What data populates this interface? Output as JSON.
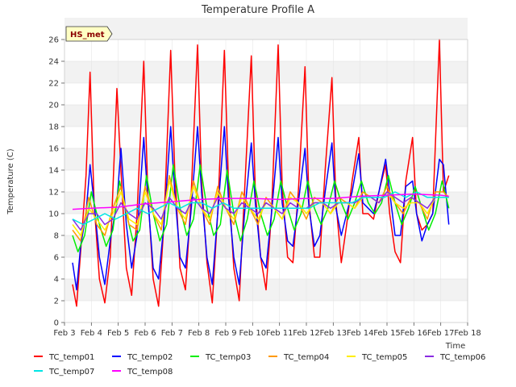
{
  "chart_data": {
    "type": "line",
    "title": "Temperature Profile A",
    "xlabel": "Time",
    "ylabel": "Temperature (C)",
    "badge": "HS_met",
    "ylim": [
      0,
      26
    ],
    "xlim": [
      3,
      18
    ],
    "yticks": [
      0,
      2,
      4,
      6,
      8,
      10,
      12,
      14,
      16,
      18,
      20,
      22,
      24,
      26
    ],
    "xticks": [
      {
        "v": 3,
        "label": "Feb 3"
      },
      {
        "v": 4,
        "label": "Feb 4"
      },
      {
        "v": 5,
        "label": "Feb 5"
      },
      {
        "v": 6,
        "label": "Feb 6"
      },
      {
        "v": 7,
        "label": "Feb 7"
      },
      {
        "v": 8,
        "label": "Feb 8"
      },
      {
        "v": 9,
        "label": "Feb 9"
      },
      {
        "v": 10,
        "label": "Feb 10"
      },
      {
        "v": 11,
        "label": "Feb 11"
      },
      {
        "v": 12,
        "label": "Feb 12"
      },
      {
        "v": 13,
        "label": "Feb 13"
      },
      {
        "v": 14,
        "label": "Feb 14"
      },
      {
        "v": 15,
        "label": "Feb 15"
      },
      {
        "v": 16,
        "label": "Feb 16"
      },
      {
        "v": 17,
        "label": "Feb 17"
      },
      {
        "v": 18,
        "label": "Feb 18"
      }
    ],
    "series": [
      {
        "name": "TC_temp01",
        "color": "#ff0000",
        "x": [
          3.3,
          3.45,
          3.6,
          3.8,
          3.95,
          4.1,
          4.3,
          4.5,
          4.7,
          4.95,
          5.1,
          5.3,
          5.5,
          5.7,
          5.95,
          6.1,
          6.3,
          6.5,
          6.7,
          6.95,
          7.1,
          7.3,
          7.5,
          7.7,
          7.95,
          8.1,
          8.3,
          8.5,
          8.7,
          8.95,
          9.1,
          9.3,
          9.5,
          9.7,
          9.95,
          10.1,
          10.3,
          10.5,
          10.7,
          10.95,
          11.1,
          11.3,
          11.5,
          11.7,
          11.95,
          12.1,
          12.3,
          12.5,
          12.7,
          12.95,
          13.1,
          13.3,
          13.5,
          13.7,
          13.95,
          14.1,
          14.3,
          14.5,
          14.7,
          14.95,
          15.1,
          15.3,
          15.5,
          15.7,
          15.95,
          16.1,
          16.3,
          16.5,
          16.7,
          16.95,
          17.1,
          17.3
        ],
        "values": [
          3.5,
          1.5,
          6.5,
          13.5,
          23.0,
          11.0,
          4.0,
          1.8,
          6.0,
          21.5,
          14.0,
          5.0,
          2.5,
          10.0,
          24.0,
          12.0,
          4.0,
          1.5,
          9.0,
          25.0,
          14.0,
          5.0,
          3.0,
          11.0,
          25.5,
          13.0,
          5.5,
          1.8,
          10.0,
          25.0,
          13.0,
          5.0,
          2.0,
          12.0,
          24.5,
          12.0,
          6.0,
          3.0,
          10.0,
          25.5,
          12.5,
          6.0,
          5.5,
          12.0,
          23.5,
          11.0,
          6.0,
          6.0,
          14.0,
          22.5,
          11.0,
          5.5,
          9.0,
          13.0,
          17.0,
          10.0,
          10.0,
          9.5,
          12.0,
          14.5,
          10.0,
          6.5,
          5.5,
          13.0,
          17.0,
          10.0,
          8.5,
          9.0,
          10.0,
          26.0,
          12.0,
          13.5
        ]
      },
      {
        "name": "TC_temp02",
        "color": "#0000ff",
        "x": [
          3.3,
          3.45,
          3.6,
          3.8,
          3.95,
          4.1,
          4.3,
          4.5,
          4.7,
          4.95,
          5.1,
          5.3,
          5.5,
          5.7,
          5.95,
          6.1,
          6.3,
          6.5,
          6.7,
          6.95,
          7.1,
          7.3,
          7.5,
          7.7,
          7.95,
          8.1,
          8.3,
          8.5,
          8.7,
          8.95,
          9.1,
          9.3,
          9.5,
          9.7,
          9.95,
          10.1,
          10.3,
          10.5,
          10.7,
          10.95,
          11.1,
          11.3,
          11.5,
          11.7,
          11.95,
          12.1,
          12.3,
          12.5,
          12.7,
          12.95,
          13.1,
          13.3,
          13.5,
          13.7,
          13.95,
          14.1,
          14.3,
          14.5,
          14.7,
          14.95,
          15.1,
          15.3,
          15.5,
          15.7,
          15.95,
          16.1,
          16.3,
          16.5,
          16.7,
          16.95,
          17.1,
          17.3
        ],
        "values": [
          5.5,
          3.0,
          7.0,
          10.0,
          14.5,
          11.0,
          6.0,
          3.5,
          7.5,
          11.0,
          16.0,
          9.0,
          5.0,
          8.0,
          17.0,
          11.5,
          5.0,
          4.0,
          9.0,
          18.0,
          12.0,
          6.0,
          5.0,
          10.0,
          18.0,
          12.0,
          6.0,
          3.5,
          10.0,
          18.0,
          11.5,
          6.0,
          3.5,
          10.0,
          16.5,
          11.0,
          6.0,
          5.0,
          10.0,
          17.0,
          11.0,
          7.5,
          7.0,
          11.0,
          16.0,
          10.5,
          7.0,
          8.0,
          12.0,
          16.5,
          10.5,
          8.0,
          10.0,
          12.0,
          15.5,
          11.0,
          10.5,
          10.0,
          12.0,
          15.0,
          12.0,
          8.0,
          8.0,
          12.5,
          13.0,
          10.0,
          7.5,
          9.0,
          10.0,
          15.0,
          14.5,
          9.0
        ]
      },
      {
        "name": "TC_temp03",
        "color": "#00ee00",
        "x": [
          3.3,
          3.5,
          3.75,
          4.0,
          4.3,
          4.55,
          4.8,
          5.05,
          5.3,
          5.55,
          5.8,
          6.05,
          6.3,
          6.55,
          6.8,
          7.05,
          7.3,
          7.55,
          7.8,
          8.05,
          8.3,
          8.55,
          8.8,
          9.05,
          9.3,
          9.55,
          9.8,
          10.05,
          10.3,
          10.55,
          10.8,
          11.05,
          11.3,
          11.55,
          11.8,
          12.05,
          12.3,
          12.55,
          12.8,
          13.05,
          13.3,
          13.55,
          13.8,
          14.05,
          14.3,
          14.55,
          14.8,
          15.05,
          15.3,
          15.55,
          15.8,
          16.05,
          16.3,
          16.55,
          16.8,
          17.05,
          17.3
        ],
        "values": [
          8.0,
          6.5,
          8.0,
          12.0,
          9.0,
          7.0,
          8.5,
          13.0,
          10.0,
          7.5,
          8.5,
          13.5,
          10.0,
          7.5,
          9.0,
          14.5,
          10.5,
          8.0,
          9.5,
          14.5,
          10.5,
          8.0,
          9.0,
          14.0,
          10.0,
          7.5,
          9.5,
          13.0,
          10.0,
          8.0,
          9.5,
          13.0,
          10.5,
          8.5,
          10.0,
          13.0,
          10.5,
          9.0,
          10.5,
          13.0,
          11.0,
          9.5,
          11.0,
          13.0,
          11.0,
          10.0,
          11.0,
          13.5,
          11.0,
          9.0,
          10.5,
          12.5,
          10.5,
          8.5,
          10.0,
          13.0,
          10.5
        ]
      },
      {
        "name": "TC_temp04",
        "color": "#ff9900",
        "x": [
          3.3,
          3.6,
          3.9,
          4.2,
          4.5,
          4.8,
          5.1,
          5.4,
          5.7,
          6.0,
          6.3,
          6.6,
          6.9,
          7.2,
          7.5,
          7.8,
          8.1,
          8.4,
          8.7,
          9.0,
          9.3,
          9.6,
          9.9,
          10.2,
          10.5,
          10.8,
          11.1,
          11.4,
          11.7,
          12.0,
          12.3,
          12.6,
          12.9,
          13.2,
          13.5,
          13.8,
          14.1,
          14.4,
          14.7,
          15.0,
          15.3,
          15.6,
          15.9,
          16.2,
          16.5,
          16.8,
          17.1,
          17.3
        ],
        "values": [
          8.5,
          7.5,
          11.5,
          9.0,
          8.0,
          10.5,
          12.5,
          9.0,
          8.5,
          12.5,
          10.0,
          8.5,
          13.5,
          10.5,
          9.0,
          13.0,
          10.5,
          9.0,
          12.5,
          10.5,
          9.0,
          12.0,
          10.5,
          9.0,
          11.5,
          10.5,
          9.5,
          12.0,
          11.0,
          9.5,
          11.5,
          11.0,
          10.0,
          11.5,
          11.0,
          10.5,
          12.0,
          11.5,
          11.0,
          12.5,
          11.0,
          10.0,
          11.5,
          11.0,
          9.5,
          12.0,
          12.0,
          11.5
        ]
      },
      {
        "name": "TC_temp05",
        "color": "#ffee00",
        "x": [
          3.3,
          3.6,
          3.9,
          4.2,
          4.5,
          4.8,
          5.1,
          5.4,
          5.7,
          6.0,
          6.3,
          6.6,
          6.9,
          7.2,
          7.5,
          7.8,
          8.1,
          8.4,
          8.7,
          9.0,
          9.3,
          9.6,
          9.9,
          10.2,
          10.5,
          10.8,
          11.1,
          11.4,
          11.7,
          12.0,
          12.3,
          12.6,
          12.9,
          13.2,
          13.5,
          13.8,
          14.1,
          14.4,
          14.7,
          15.0,
          15.3,
          15.6,
          15.9,
          16.2,
          16.5,
          16.8,
          17.1,
          17.3
        ],
        "values": [
          9.0,
          8.0,
          10.5,
          9.5,
          8.5,
          10.0,
          12.0,
          9.5,
          9.0,
          12.0,
          10.0,
          9.0,
          13.0,
          10.5,
          9.5,
          12.5,
          10.5,
          9.5,
          12.0,
          10.5,
          9.5,
          11.5,
          10.5,
          9.5,
          11.0,
          10.5,
          9.5,
          11.5,
          11.0,
          10.0,
          11.0,
          11.0,
          10.0,
          11.0,
          11.0,
          10.5,
          11.5,
          11.5,
          11.0,
          12.0,
          11.0,
          10.5,
          11.0,
          11.0,
          10.0,
          11.5,
          11.5,
          11.5
        ]
      },
      {
        "name": "TC_temp06",
        "color": "#8a2be2",
        "x": [
          3.3,
          3.6,
          3.9,
          4.2,
          4.5,
          4.8,
          5.1,
          5.4,
          5.7,
          6.0,
          6.3,
          6.6,
          6.9,
          7.2,
          7.5,
          7.8,
          8.1,
          8.4,
          8.7,
          9.0,
          9.3,
          9.6,
          9.9,
          10.2,
          10.5,
          10.8,
          11.1,
          11.4,
          11.7,
          12.0,
          12.3,
          12.6,
          12.9,
          13.2,
          13.5,
          13.8,
          14.1,
          14.4,
          14.7,
          15.0,
          15.3,
          15.6,
          15.9,
          16.2,
          16.5,
          16.8,
          17.1,
          17.3
        ],
        "values": [
          9.5,
          8.5,
          10.0,
          10.0,
          9.0,
          9.5,
          11.0,
          10.0,
          9.5,
          11.0,
          10.5,
          9.5,
          11.5,
          10.5,
          10.0,
          11.5,
          10.5,
          10.0,
          11.5,
          10.5,
          10.0,
          11.0,
          10.5,
          10.0,
          11.0,
          10.5,
          10.0,
          11.0,
          10.5,
          10.5,
          11.0,
          11.0,
          10.5,
          11.0,
          11.0,
          11.0,
          11.5,
          11.5,
          11.0,
          12.0,
          11.5,
          11.0,
          11.5,
          11.0,
          10.5,
          11.5,
          11.5,
          11.5
        ]
      },
      {
        "name": "TC_temp07",
        "color": "#00e5e5",
        "x": [
          3.3,
          3.7,
          4.1,
          4.5,
          4.9,
          5.3,
          5.7,
          6.1,
          6.5,
          6.9,
          7.3,
          7.7,
          8.1,
          8.5,
          8.9,
          9.3,
          9.7,
          10.1,
          10.5,
          10.9,
          11.3,
          11.7,
          12.1,
          12.5,
          12.9,
          13.3,
          13.7,
          14.1,
          14.5,
          14.9,
          15.3,
          15.7,
          16.1,
          16.5,
          16.9,
          17.3
        ],
        "values": [
          9.5,
          9.0,
          9.5,
          10.0,
          9.5,
          10.0,
          10.5,
          10.0,
          10.5,
          11.0,
          10.5,
          11.0,
          11.0,
          10.5,
          11.0,
          10.5,
          10.5,
          10.5,
          10.5,
          10.5,
          10.5,
          10.5,
          10.5,
          11.0,
          11.0,
          11.0,
          11.0,
          11.5,
          11.5,
          11.5,
          12.0,
          11.5,
          12.0,
          11.5,
          11.5,
          11.5
        ]
      },
      {
        "name": "TC_temp08",
        "color": "#ff00ff",
        "x": [
          3.3,
          4.0,
          5.0,
          6.0,
          7.0,
          8.0,
          9.0,
          10.0,
          11.0,
          12.0,
          13.0,
          14.0,
          15.0,
          16.0,
          17.0,
          17.3
        ],
        "values": [
          10.4,
          10.5,
          10.6,
          10.9,
          11.1,
          11.3,
          11.4,
          11.4,
          11.3,
          11.4,
          11.4,
          11.6,
          11.7,
          11.8,
          11.7,
          11.6
        ]
      }
    ]
  }
}
